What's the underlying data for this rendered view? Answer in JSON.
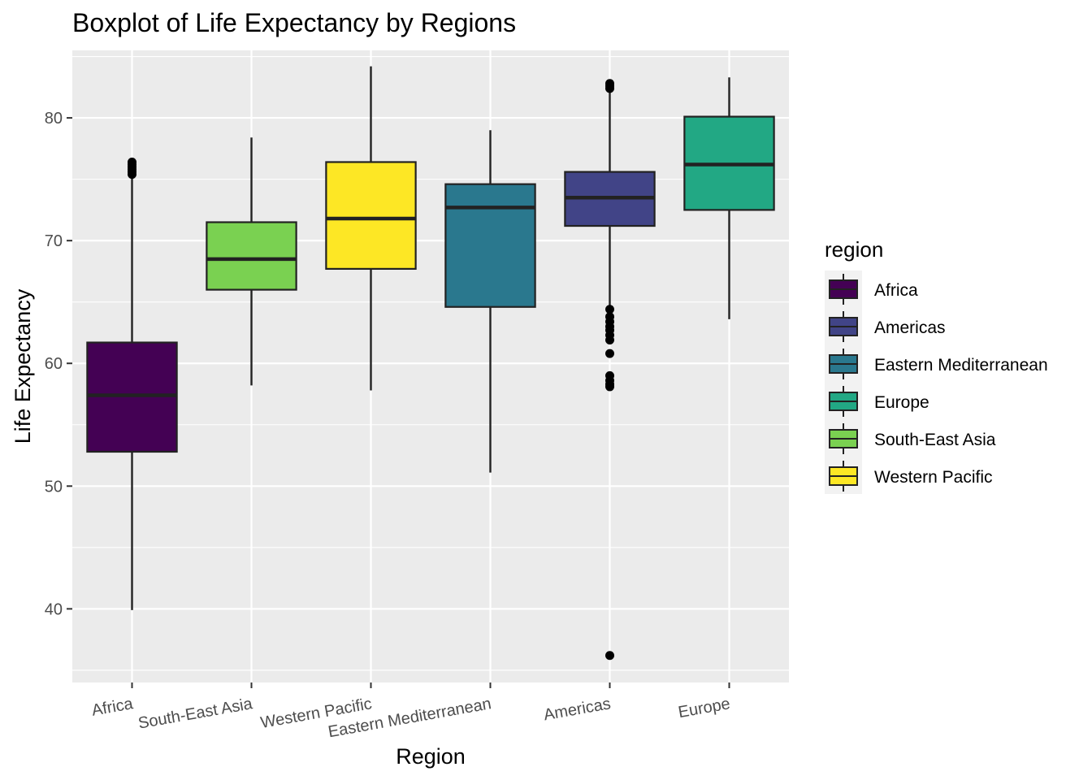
{
  "chart_data": {
    "type": "boxplot",
    "title": "Boxplot of Life Expectancy by Regions",
    "xlabel": "Region",
    "ylabel": "Life Expectancy",
    "ylim": [
      34.0,
      85.5
    ],
    "yticks": [
      40,
      50,
      60,
      70,
      80
    ],
    "grid": true,
    "legend": {
      "title": "region",
      "placement": "right",
      "entries": [
        "Africa",
        "Americas",
        "Eastern Mediterranean",
        "Europe",
        "South-East Asia",
        "Western Pacific"
      ]
    },
    "colors": {
      "Africa": "#440154",
      "Americas": "#414487",
      "Eastern Mediterranean": "#2a788e",
      "Europe": "#22a884",
      "South-East Asia": "#7ad151",
      "Western Pacific": "#fde725"
    },
    "categories": [
      "Africa",
      "South-East Asia",
      "Western Pacific",
      "Eastern Mediterranean",
      "Americas",
      "Europe"
    ],
    "boxes": [
      {
        "category": "Africa",
        "whisker_low": 39.9,
        "q1": 52.8,
        "median": 57.4,
        "q3": 61.7,
        "whisker_high": 75.1,
        "outliers": [
          75.4,
          75.6,
          75.8,
          76.0,
          76.2,
          76.4
        ]
      },
      {
        "category": "South-East Asia",
        "whisker_low": 58.2,
        "q1": 66.0,
        "median": 68.5,
        "q3": 71.5,
        "whisker_high": 78.4,
        "outliers": []
      },
      {
        "category": "Western Pacific",
        "whisker_low": 57.8,
        "q1": 67.7,
        "median": 71.8,
        "q3": 76.4,
        "whisker_high": 84.2,
        "outliers": []
      },
      {
        "category": "Eastern Mediterranean",
        "whisker_low": 51.1,
        "q1": 64.6,
        "median": 72.7,
        "q3": 74.6,
        "whisker_high": 79.0,
        "outliers": []
      },
      {
        "category": "Americas",
        "whisker_low": 64.6,
        "q1": 71.2,
        "median": 73.5,
        "q3": 75.6,
        "whisker_high": 82.2,
        "outliers": [
          82.4,
          82.6,
          82.8,
          64.4,
          63.8,
          63.4,
          63.0,
          62.7,
          62.3,
          61.9,
          60.8,
          59.0,
          58.6,
          58.3,
          58.1,
          36.2
        ]
      },
      {
        "category": "Europe",
        "whisker_low": 63.6,
        "q1": 72.5,
        "median": 76.2,
        "q3": 80.1,
        "whisker_high": 83.3,
        "outliers": []
      }
    ]
  }
}
